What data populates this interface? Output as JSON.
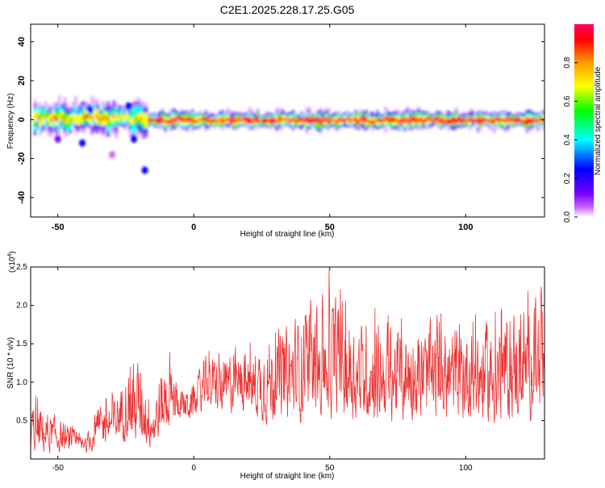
{
  "title": "C2E1.2025.228.17.25.G05",
  "chart_data": [
    {
      "type": "heatmap",
      "xlabel": "Height of straight line (km)",
      "ylabel": "Frequency (Hz)",
      "xlim": [
        -60,
        129
      ],
      "ylim": [
        -50,
        49
      ],
      "xticks": [
        -50,
        0,
        50,
        100
      ],
      "yticks": [
        -40,
        -20,
        0,
        20,
        40
      ],
      "colorbar": {
        "label": "Normalized spectral amplitude",
        "range": [
          0,
          1
        ],
        "ticks": [
          "0.0",
          "0.2",
          "0.4",
          "0.6",
          "0.8"
        ],
        "tick_values": [
          0.0,
          0.2,
          0.4,
          0.6,
          0.8
        ],
        "colormap": [
          "#ffffff",
          "#cc66ff",
          "#7700ff",
          "#0000ff",
          "#00ffff",
          "#00ff00",
          "#ffff00",
          "#ff9900",
          "#ff0000",
          "#ff0066"
        ]
      },
      "band": {
        "segments": [
          {
            "x": [
              -59,
              -17
            ],
            "center": 1,
            "halfwidth": 4.5
          },
          {
            "x": [
              -17,
              129
            ],
            "center": 0,
            "halfwidth": 2.5
          }
        ]
      },
      "blobs": [
        {
          "x": -50,
          "y": -10,
          "level": 0.25
        },
        {
          "x": -41,
          "y": -12,
          "level": 0.3
        },
        {
          "x": -30,
          "y": -18,
          "level": 0.12
        },
        {
          "x": -22,
          "y": -10,
          "level": 0.28
        },
        {
          "x": -18,
          "y": -26,
          "level": 0.3
        },
        {
          "x": -24,
          "y": 7,
          "level": 0.35
        },
        {
          "x": -20,
          "y": 5,
          "level": 0.45
        },
        {
          "x": -38,
          "y": 5,
          "level": 0.3
        }
      ]
    },
    {
      "type": "line",
      "xlabel": "Height of straight line (km)",
      "ylabel": "SNR (10 * v/v)",
      "yscale_label": "(x10",
      "yscale_exponent": "4",
      "yscale_suffix": ")",
      "xlim": [
        -60,
        129
      ],
      "ylim": [
        0,
        2.5
      ],
      "xticks": [
        -50,
        0,
        50,
        100
      ],
      "yticks": [
        "0.5",
        "1.0",
        "1.5",
        "2.0",
        "2.5"
      ],
      "ytick_values": [
        0.5,
        1.0,
        1.5,
        2.0,
        2.5
      ],
      "color": "#ee3333",
      "envelope": {
        "x": [
          -60,
          -50,
          -40,
          -35,
          -30,
          -25,
          -20,
          -15,
          -10,
          -5,
          0,
          5,
          10,
          15,
          20,
          30,
          40,
          50,
          60,
          70,
          80,
          90,
          100,
          110,
          120,
          129
        ],
        "low": [
          0.0,
          0.05,
          0.05,
          0.1,
          0.15,
          0.2,
          0.1,
          0.1,
          0.25,
          0.5,
          0.45,
          0.6,
          0.5,
          0.55,
          0.5,
          0.35,
          0.4,
          0.4,
          0.4,
          0.4,
          0.4,
          0.35,
          0.4,
          0.35,
          0.4,
          0.5
        ],
        "high": [
          0.9,
          0.6,
          0.3,
          0.8,
          0.9,
          1.3,
          1.5,
          0.9,
          1.6,
          1.0,
          1.0,
          1.5,
          1.4,
          1.6,
          1.5,
          1.9,
          2.1,
          2.5,
          2.0,
          2.0,
          2.0,
          1.9,
          2.0,
          2.0,
          2.2,
          2.35
        ]
      }
    }
  ]
}
